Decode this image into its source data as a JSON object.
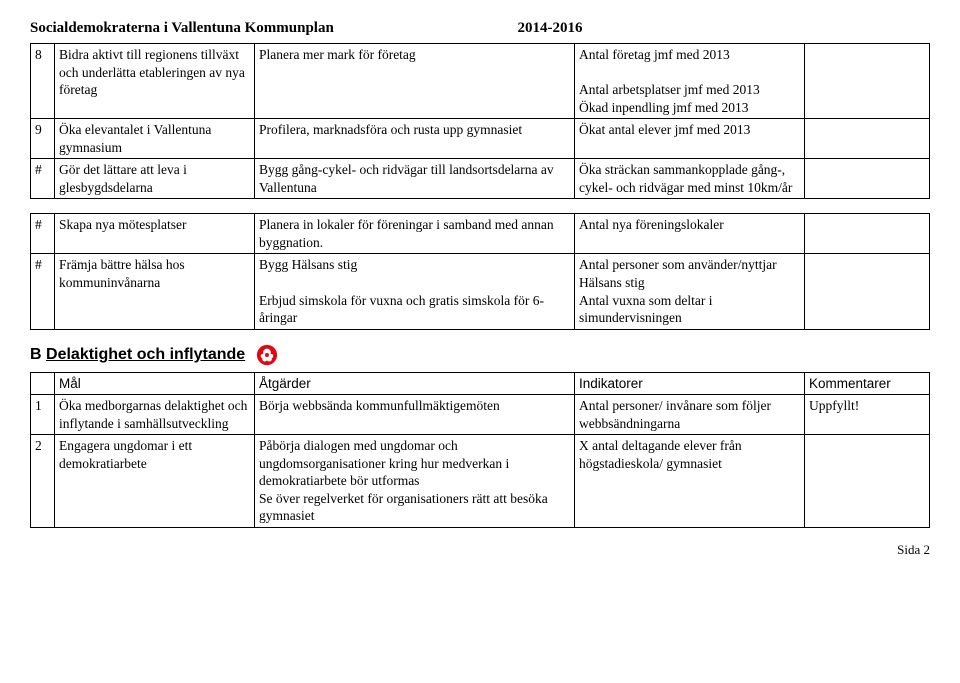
{
  "header": {
    "title": "Socialdemokraterna i Vallentuna Kommunplan",
    "years": "2014-2016"
  },
  "tableA": {
    "rows": [
      {
        "n": "8",
        "goal": "Bidra aktivt till regionens tillväxt och underlätta etableringen av nya företag",
        "act": "Planera mer mark för företag",
        "ind": "Antal företag jmf med 2013\n\nAntal arbetsplatser jmf med 2013\nÖkad inpendling jmf med 2013",
        "com": ""
      },
      {
        "n": "9",
        "goal": "Öka elevantalet i Vallentuna gymnasium",
        "act": "Profilera, marknadsföra och rusta upp gymnasiet",
        "ind": "Ökat antal elever jmf med 2013",
        "com": ""
      },
      {
        "n": "#",
        "goal": "Gör det lättare att leva i glesbygdsdelarna",
        "act": "Bygg gång-cykel- och ridvägar till landsortsdelarna av Vallentuna",
        "ind": "Öka sträckan sammankopplade gång-, cykel- och ridvägar med minst 10km/år",
        "com": ""
      }
    ]
  },
  "tableA2": {
    "rows": [
      {
        "n": "#",
        "goal": "Skapa nya mötesplatser",
        "act": "Planera in lokaler för föreningar i samband med annan byggnation.",
        "ind": "Antal nya föreningslokaler",
        "com": ""
      },
      {
        "n": "#",
        "goal": "Främja bättre hälsa hos kommuninvånarna",
        "act": "Bygg Hälsans stig\n\nErbjud simskola för vuxna och gratis simskola för 6-åringar",
        "ind": "Antal personer som använder/nyttjar Hälsans stig\nAntal vuxna som deltar i simundervisningen",
        "com": ""
      }
    ]
  },
  "sectionB": {
    "label": "B",
    "title": "Delaktighet och inflytande"
  },
  "tableB": {
    "headers": {
      "goal": "Mål",
      "act": "Åtgärder",
      "ind": "Indikatorer",
      "com": "Kommentarer"
    },
    "rows": [
      {
        "n": "1",
        "goal": "Öka medborgarnas delaktighet och inflytande i samhällsutveckling",
        "act": "Börja webbsända kommunfullmäktigemöten",
        "ind": "Antal personer/ invånare som följer webbsändningarna",
        "com": "Uppfyllt!"
      },
      {
        "n": "2",
        "goal": "Engagera ungdomar i ett demokratiarbete",
        "act": "Påbörja dialogen med ungdomar och ungdomsorganisationer kring hur medverkan i demokratiarbete bör utformas\nSe över regelverket för organisationers rätt att besöka gymnasiet",
        "ind": "X antal deltagande elever från högstadieskola/ gymnasiet",
        "com": ""
      }
    ]
  },
  "footer": {
    "page": "Sida 2"
  }
}
